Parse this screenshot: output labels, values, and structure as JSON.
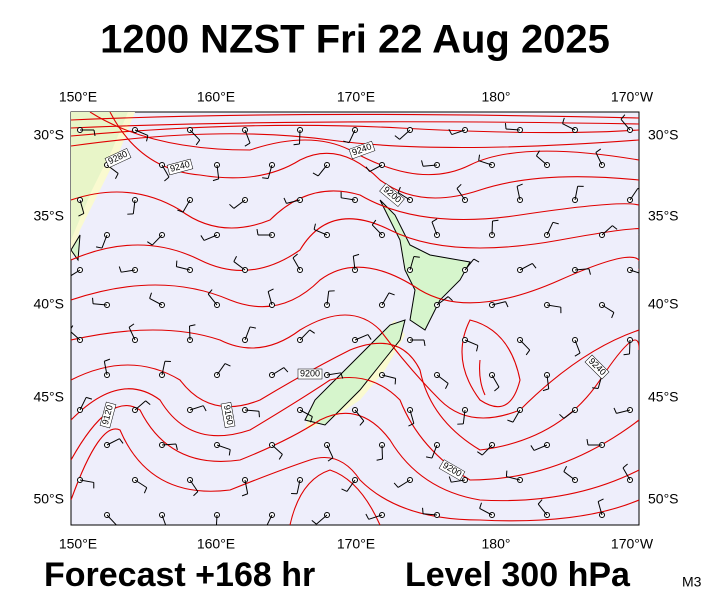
{
  "title": "1200 NZST Fri 22 Aug 2025",
  "lon_labels": [
    "150°E",
    "160°E",
    "170°E",
    "180°",
    "170°W"
  ],
  "lat_labels": [
    "30°S",
    "35°S",
    "40°S",
    "45°S",
    "50°S"
  ],
  "contour_labels": [
    "9280",
    "9240",
    "9240",
    "9200",
    "9200",
    "9160",
    "9120",
    "9200",
    "9240"
  ],
  "footer": {
    "forecast": "Forecast +168 hr",
    "level": "Level 300 hPa",
    "model": "M3"
  }
}
